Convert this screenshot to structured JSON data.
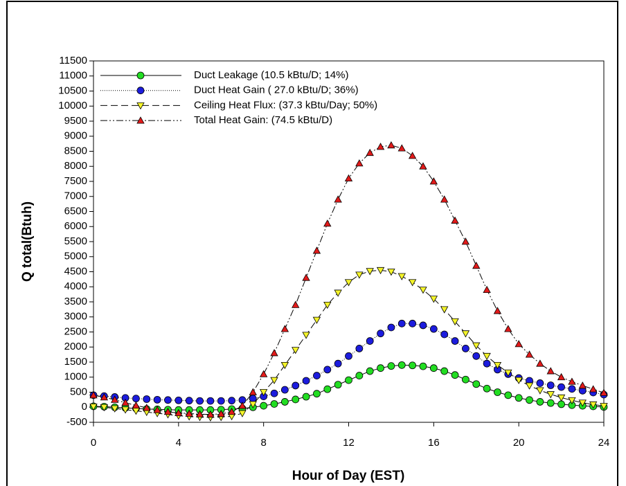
{
  "chart_data": {
    "type": "line",
    "xlabel": "Hour of Day (EST)",
    "ylabel": "Q total(Btuh)",
    "xlim": [
      0,
      24
    ],
    "xticks": [
      0,
      4,
      8,
      12,
      16,
      20,
      24
    ],
    "ylim": [
      -500,
      11500
    ],
    "yticks": [
      -500,
      0,
      500,
      1000,
      1500,
      2000,
      2500,
      3000,
      3500,
      4000,
      4500,
      5000,
      5500,
      6000,
      6500,
      7000,
      7500,
      8000,
      8500,
      9000,
      9500,
      10000,
      10500,
      11000,
      11500
    ],
    "legend": "upper left",
    "x": [
      0,
      0.5,
      1,
      1.5,
      2,
      2.5,
      3,
      3.5,
      4,
      4.5,
      5,
      5.5,
      6,
      6.5,
      7,
      7.5,
      8,
      8.5,
      9,
      9.5,
      10,
      10.5,
      11,
      11.5,
      12,
      12.5,
      13,
      13.5,
      14,
      14.5,
      15,
      15.5,
      16,
      16.5,
      17,
      17.5,
      18,
      18.5,
      19,
      19.5,
      20,
      20.5,
      21,
      21.5,
      22,
      22.5,
      23,
      23.5,
      24
    ],
    "series": [
      {
        "name": "Duct Leakage (10.5 kBtu/D; 14%)",
        "color": "#22dd22",
        "marker": "circle",
        "line_style": "solid",
        "values": [
          30,
          20,
          0,
          -20,
          -40,
          -60,
          -70,
          -80,
          -90,
          -90,
          -90,
          -90,
          -80,
          -60,
          -40,
          0,
          50,
          110,
          180,
          260,
          350,
          450,
          600,
          750,
          900,
          1050,
          1200,
          1300,
          1370,
          1400,
          1390,
          1360,
          1300,
          1200,
          1070,
          920,
          770,
          620,
          500,
          400,
          310,
          240,
          180,
          140,
          100,
          70,
          50,
          30,
          10
        ]
      },
      {
        "name": "Duct Heat Gain ( 27.0 kBtu/D; 36%)",
        "color": "#1c1cdd",
        "marker": "circle",
        "line_style": "dotted",
        "values": [
          400,
          370,
          340,
          310,
          290,
          270,
          250,
          240,
          230,
          220,
          210,
          210,
          210,
          220,
          240,
          290,
          360,
          460,
          580,
          720,
          880,
          1050,
          1250,
          1450,
          1700,
          1950,
          2200,
          2450,
          2650,
          2780,
          2780,
          2720,
          2600,
          2420,
          2200,
          1950,
          1700,
          1450,
          1250,
          1100,
          970,
          880,
          800,
          730,
          670,
          610,
          550,
          490,
          420
        ]
      },
      {
        "name": "Ceiling Heat Flux: (37.3 kBtu/Day; 50%)",
        "color": "#f4f42a",
        "marker": "triangle-down",
        "line_style": "dashed",
        "values": [
          20,
          0,
          -40,
          -80,
          -120,
          -160,
          -200,
          -240,
          -280,
          -310,
          -330,
          -340,
          -330,
          -300,
          -200,
          100,
          500,
          900,
          1400,
          1900,
          2400,
          2900,
          3400,
          3800,
          4150,
          4400,
          4520,
          4550,
          4500,
          4350,
          4150,
          3900,
          3600,
          3250,
          2850,
          2450,
          2050,
          1700,
          1400,
          1150,
          900,
          720,
          560,
          430,
          320,
          230,
          150,
          90,
          40
        ]
      },
      {
        "name": "Total Heat Gain: (74.5 kBtu/D)",
        "color": "#e21a1a",
        "marker": "triangle-up",
        "line_style": "dash-dot-dot",
        "values": [
          400,
          330,
          250,
          150,
          60,
          -20,
          -90,
          -150,
          -190,
          -210,
          -230,
          -240,
          -220,
          -150,
          50,
          500,
          1100,
          1800,
          2600,
          3400,
          4300,
          5200,
          6100,
          6900,
          7600,
          8100,
          8450,
          8650,
          8700,
          8600,
          8350,
          8000,
          7500,
          6900,
          6200,
          5500,
          4700,
          3900,
          3200,
          2600,
          2100,
          1750,
          1450,
          1200,
          1000,
          850,
          720,
          600,
          480
        ]
      }
    ]
  }
}
